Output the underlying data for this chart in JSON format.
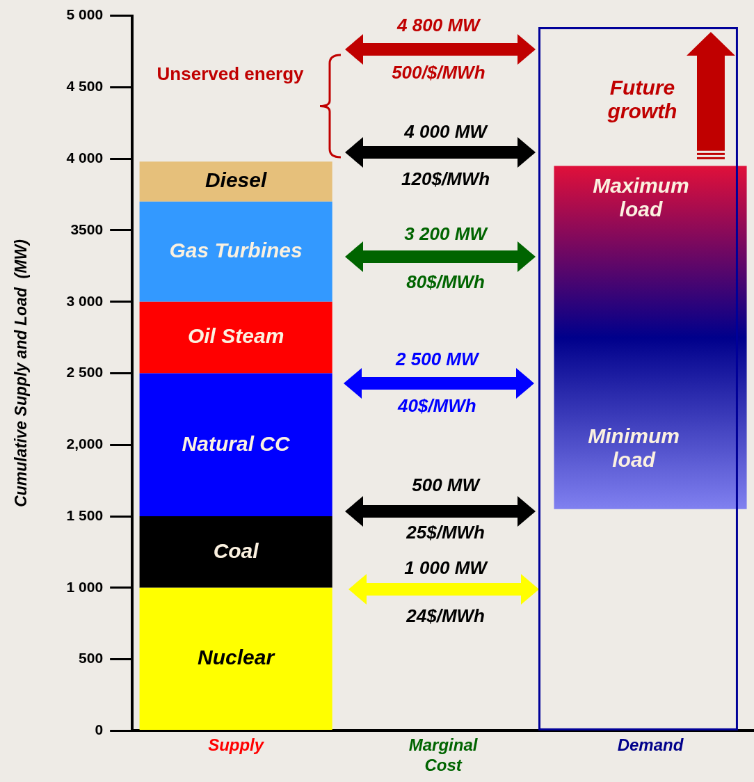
{
  "chart_data": {
    "type": "bar",
    "stacked": true,
    "categories": [
      "Supply",
      "Marginal Cost",
      "Demand"
    ],
    "ylabel": "Cumulative Supply and Load  (MW)",
    "ylim": [
      0,
      5000
    ],
    "yticks": [
      0,
      500,
      {
        "value": 1000,
        "label": "1 000"
      },
      {
        "value": 1500,
        "label": "1 500"
      },
      {
        "value": 2000,
        "label": "2,000"
      },
      {
        "value": 2500,
        "label": "2 500"
      },
      {
        "value": 3000,
        "label": "3 000"
      },
      3500,
      {
        "value": 4000,
        "label": "4 000"
      },
      {
        "value": 4500,
        "label": "4 500"
      },
      {
        "value": 5000,
        "label": "5 000"
      }
    ],
    "series": [
      {
        "name": "Nuclear",
        "color": "#ffff00",
        "values": [
          1000,
          null,
          null
        ]
      },
      {
        "name": "Coal",
        "color": "#000000",
        "values": [
          500,
          null,
          null
        ]
      },
      {
        "name": "Natural CC",
        "color": "#0000ff",
        "values": [
          1000,
          null,
          null
        ]
      },
      {
        "name": "Oil Steam",
        "color": "#ff0000",
        "values": [
          500,
          null,
          null
        ]
      },
      {
        "name": "Gas Turbines",
        "color": "#3399ff",
        "values": [
          700,
          null,
          null
        ]
      },
      {
        "name": "Diesel",
        "color": "#e6c07b",
        "values": [
          280,
          null,
          null
        ]
      },
      {
        "color": "#00008b",
        "values": [
          null,
          null,
          2400
        ],
        "base": [
          null,
          null,
          1550
        ]
      }
    ],
    "grid": false,
    "legend": false,
    "annotations": [
      "Unserved energy",
      "4 800 MW",
      "500/$/MWh",
      "4 000 MW",
      "120$/MWh",
      "3 200 MW",
      "80$/MWh",
      "2 500 MW",
      "40$/MWh",
      "500 MW",
      "25$/MWh",
      "1 000 MW",
      "24$/MWh",
      "Future growth",
      "Maximum load",
      "Minimum load"
    ]
  }
}
